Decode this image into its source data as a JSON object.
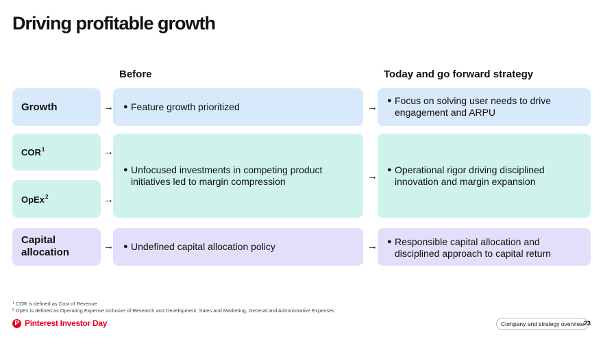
{
  "title": "Driving profitable growth",
  "columns": {
    "before": "Before",
    "today": "Today and go forward strategy"
  },
  "rows": {
    "growth": {
      "label": "Growth",
      "before": "Feature growth prioritized",
      "today": "Focus on solving user needs to drive engagement and ARPU"
    },
    "cor": {
      "label": "COR",
      "sup": "1"
    },
    "opex": {
      "label": "OpEx",
      "sup": "2"
    },
    "cost": {
      "before": "Unfocused investments in competing product initiatives led to margin compression",
      "today": "Operational rigor driving disciplined innovation and margin expansion"
    },
    "capital": {
      "label": "Capital allocation",
      "before": "Undefined capital allocation policy",
      "today": "Responsible capital allocation and disciplined approach to capital return"
    }
  },
  "bullet": "●",
  "arrow": "→",
  "footnotes": [
    {
      "mark": "1",
      "text": "COR is defined as Cost of Revenue"
    },
    {
      "mark": "2",
      "text": "OpEx is defined as Operating Expense inclusive of Research and Development, Sales and Marketing, General and Administrative Expenses"
    }
  ],
  "footer": {
    "brand": "Pinterest Investor Day",
    "logo_glyph": "P",
    "section": "Company and strategy overview",
    "page": "23"
  },
  "colors": {
    "growth_bg": "#d7e9fb",
    "cost_bg": "#cff3ec",
    "capital_bg": "#e3defa",
    "brand_red": "#e60023"
  }
}
